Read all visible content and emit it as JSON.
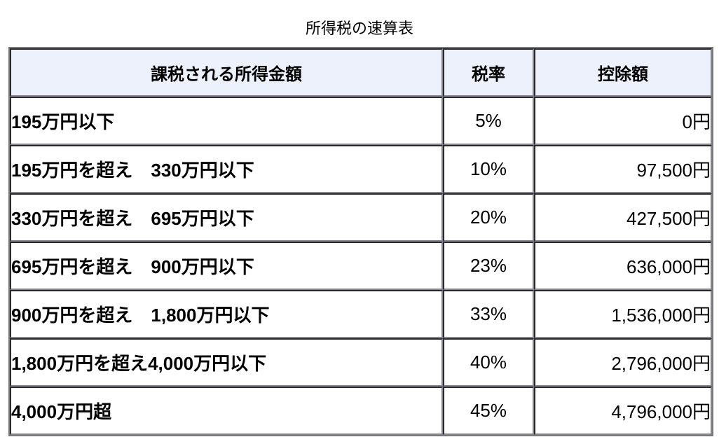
{
  "title": "所得税の速算表",
  "table": {
    "headers": {
      "income": "課税される所得金額",
      "rate": "税率",
      "deduction": "控除額"
    },
    "rows": [
      {
        "income": "195万円以下",
        "rate": "5%",
        "deduction": "0円"
      },
      {
        "income": "195万円を超え　330万円以下",
        "rate": "10%",
        "deduction": "97,500円"
      },
      {
        "income": "330万円を超え　695万円以下",
        "rate": "20%",
        "deduction": "427,500円"
      },
      {
        "income": "695万円を超え　900万円以下",
        "rate": "23%",
        "deduction": "636,000円"
      },
      {
        "income": "900万円を超え　1,800万円以下",
        "rate": "33%",
        "deduction": "1,536,000円"
      },
      {
        "income": "1,800万円を超え4,000万円以下",
        "rate": "40%",
        "deduction": "2,796,000円"
      },
      {
        "income": "4,000万円超",
        "rate": "45%",
        "deduction": "4,796,000円"
      }
    ],
    "colors": {
      "highlight_bg": "#ecf1fc",
      "cell_bg": "#ffffff",
      "border_dark": "#2a2a2e",
      "border_light": "#84848c",
      "outer_border": "#7a7a7a",
      "text": "#000000"
    }
  },
  "chart_data": {
    "type": "table",
    "title": "所得税の速算表",
    "columns": [
      "課税される所得金額",
      "税率",
      "控除額"
    ],
    "rows": [
      [
        "195万円以下",
        "5%",
        "0円"
      ],
      [
        "195万円を超え　330万円以下",
        "10%",
        "97,500円"
      ],
      [
        "330万円を超え　695万円以下",
        "20%",
        "427,500円"
      ],
      [
        "695万円を超え　900万円以下",
        "23%",
        "636,000円"
      ],
      [
        "900万円を超え　1,800万円以下",
        "33%",
        "1,536,000円"
      ],
      [
        "1,800万円を超え4,000万円以下",
        "40%",
        "2,796,000円"
      ],
      [
        "4,000万円超",
        "45%",
        "4,796,000円"
      ]
    ],
    "rates_percent": [
      5,
      10,
      20,
      23,
      33,
      40,
      45
    ],
    "deductions_yen": [
      0,
      97500,
      427500,
      636000,
      1536000,
      2796000,
      4796000
    ],
    "bracket_upper_limits_man_yen": [
      195,
      330,
      695,
      900,
      1800,
      4000,
      null
    ]
  }
}
